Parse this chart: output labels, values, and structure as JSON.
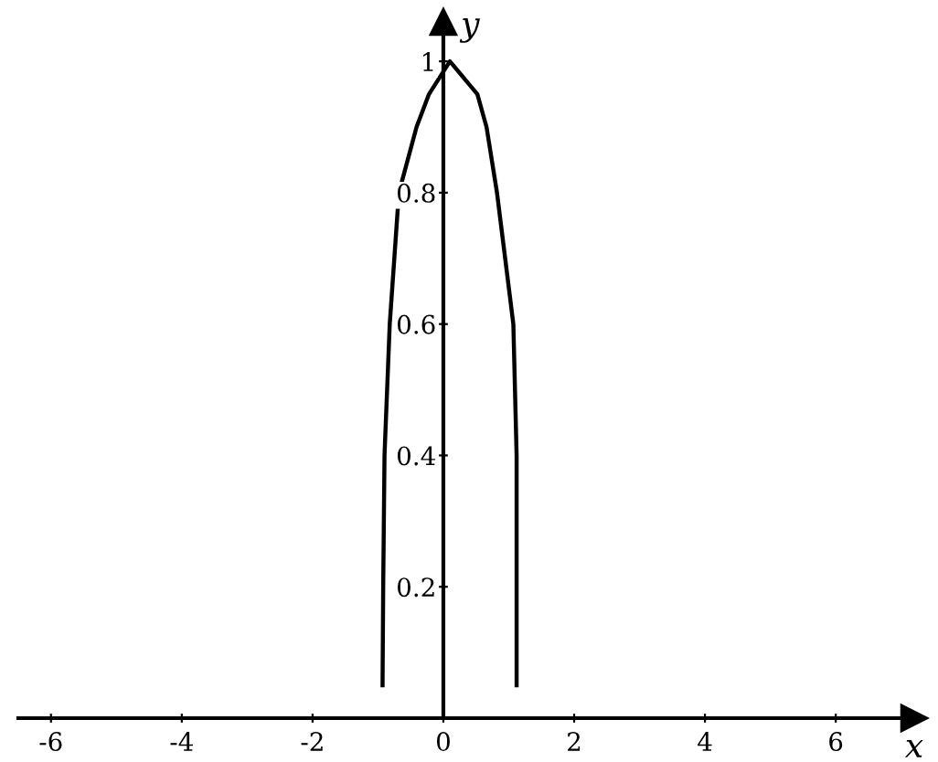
{
  "chart_data": {
    "type": "line",
    "xlabel": "x",
    "ylabel": "y",
    "x": [
      -0.93,
      -0.92,
      -0.9,
      -0.82,
      -0.68,
      -0.41,
      -0.22,
      0.1,
      0.52,
      0.66,
      0.82,
      1.07,
      1.12,
      1.12,
      1.12
    ],
    "series": [
      {
        "color": "#000000",
        "values": [
          0.05,
          0.2,
          0.4,
          0.6,
          0.8,
          0.9,
          0.95,
          1.0,
          0.95,
          0.9,
          0.8,
          0.6,
          0.4,
          0.2,
          0.05
        ]
      }
    ],
    "xlim": [
      -6.5,
      7.2
    ],
    "ylim": [
      0,
      1.06
    ],
    "xticks": [
      -6,
      -4,
      -2,
      0,
      2,
      4,
      6
    ],
    "yticks": [
      {
        "value": 0.2,
        "label": "0.2"
      },
      {
        "value": 0.4,
        "label": "0.4"
      },
      {
        "value": 0.6,
        "label": "0.6"
      },
      {
        "value": 0.8,
        "label": "0.8"
      },
      {
        "value": 1,
        "label": "1"
      }
    ],
    "grid": false,
    "legend": false,
    "marker": "none",
    "line_style": "solid"
  }
}
